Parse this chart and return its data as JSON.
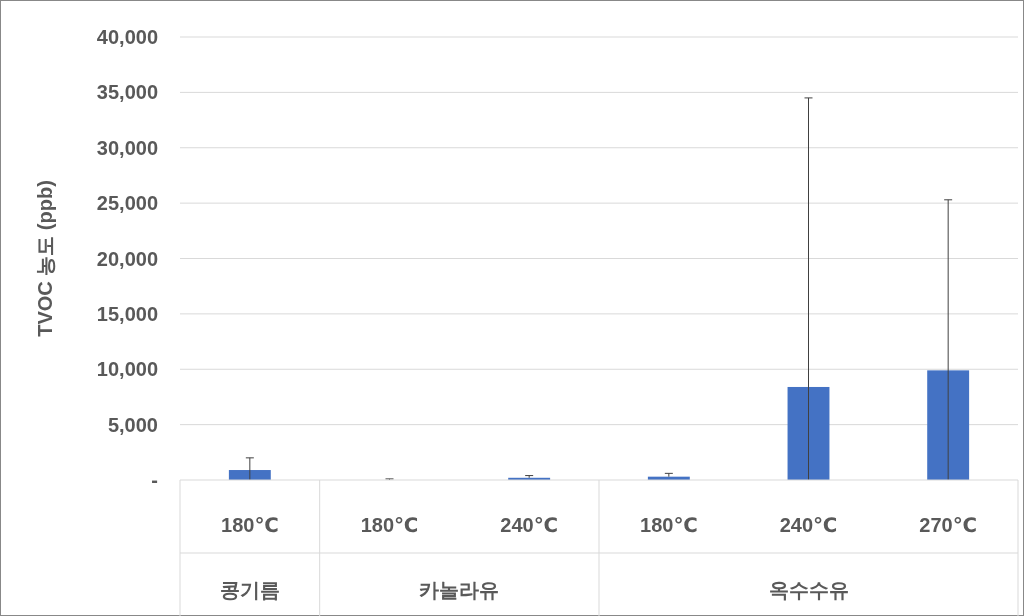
{
  "chart_data": {
    "type": "bar",
    "ylabel": "TVOC 농도 (ppb)",
    "categories": [
      "180℃",
      "180℃",
      "240℃",
      "180℃",
      "240℃",
      "270℃"
    ],
    "values": [
      900,
      0,
      200,
      300,
      8400,
      9900
    ],
    "errors": [
      [
        0,
        2000
      ],
      [
        0,
        100
      ],
      [
        200,
        400
      ],
      [
        300,
        600
      ],
      [
        0,
        34500
      ],
      [
        0,
        25300
      ]
    ],
    "color": "#4472c4",
    "ylim": [
      0,
      40000
    ],
    "yticks": [
      {
        "value": 0,
        "label": "-"
      },
      {
        "value": 5000,
        "label": "5,000"
      },
      {
        "value": 10000,
        "label": "10,000"
      },
      {
        "value": 15000,
        "label": "15,000"
      },
      {
        "value": 20000,
        "label": "20,000"
      },
      {
        "value": 25000,
        "label": "25,000"
      },
      {
        "value": 30000,
        "label": "30,000"
      },
      {
        "value": 35000,
        "label": "35,000"
      },
      {
        "value": 40000,
        "label": "40,000"
      }
    ],
    "grid": "y",
    "annotations": [
      "콩기름",
      "카놀라유",
      "옥수수유"
    ]
  }
}
